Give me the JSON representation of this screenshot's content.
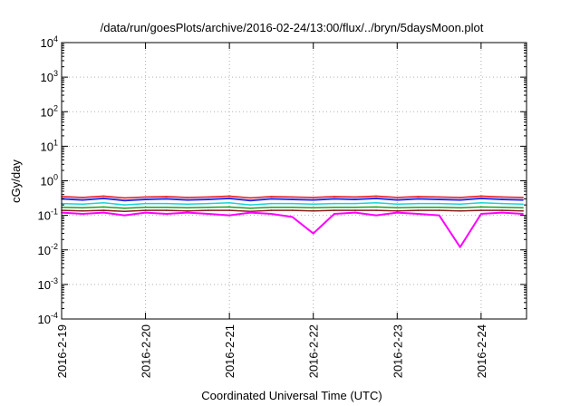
{
  "chart_data": {
    "type": "line",
    "title": "/data/run/goesPlots/archive/2016-02-24/13:00/flux/../bryn/5daysMoon.plot",
    "xlabel": "Coordinated Universal Time (UTC)",
    "ylabel": "cGy/day",
    "yscale": "log",
    "ylim": [
      0.0001,
      10000
    ],
    "xlim": [
      "2016-02-19 00:00",
      "2016-02-24 13:00"
    ],
    "grid": true,
    "legend": "none",
    "x_ticks": [
      "2016-2-19",
      "2016-2-20",
      "2016-2-21",
      "2016-2-22",
      "2016-2-23",
      "2016-2-24"
    ],
    "y_ticks": [
      {
        "base": "10",
        "exp": "-4",
        "value": 0.0001
      },
      {
        "base": "10",
        "exp": "-3",
        "value": 0.001
      },
      {
        "base": "10",
        "exp": "-2",
        "value": 0.01
      },
      {
        "base": "10",
        "exp": "-1",
        "value": 0.1
      },
      {
        "base": "10",
        "exp": "0",
        "value": 1
      },
      {
        "base": "10",
        "exp": "1",
        "value": 10
      },
      {
        "base": "10",
        "exp": "2",
        "value": 100
      },
      {
        "base": "10",
        "exp": "3",
        "value": 1000
      },
      {
        "base": "10",
        "exp": "4",
        "value": 10000
      }
    ],
    "x_dates": [
      "2016-02-19 00:00",
      "2016-02-19 06:00",
      "2016-02-19 12:00",
      "2016-02-19 18:00",
      "2016-02-20 00:00",
      "2016-02-20 06:00",
      "2016-02-20 12:00",
      "2016-02-20 18:00",
      "2016-02-21 00:00",
      "2016-02-21 06:00",
      "2016-02-21 12:00",
      "2016-02-21 18:00",
      "2016-02-22 00:00",
      "2016-02-22 06:00",
      "2016-02-22 12:00",
      "2016-02-22 18:00",
      "2016-02-23 00:00",
      "2016-02-23 06:00",
      "2016-02-23 12:00",
      "2016-02-23 18:00",
      "2016-02-24 00:00",
      "2016-02-24 06:00",
      "2016-02-24 12:00"
    ],
    "series": [
      {
        "color": "#e8161b",
        "values": [
          0.35,
          0.33,
          0.36,
          0.32,
          0.34,
          0.35,
          0.33,
          0.34,
          0.36,
          0.32,
          0.35,
          0.34,
          0.33,
          0.35,
          0.34,
          0.36,
          0.33,
          0.35,
          0.34,
          0.33,
          0.36,
          0.34,
          0.33
        ]
      },
      {
        "color": "#2a2ee6",
        "values": [
          0.3,
          0.28,
          0.31,
          0.27,
          0.29,
          0.3,
          0.28,
          0.29,
          0.31,
          0.27,
          0.3,
          0.29,
          0.28,
          0.3,
          0.29,
          0.31,
          0.28,
          0.3,
          0.29,
          0.28,
          0.31,
          0.29,
          0.28
        ]
      },
      {
        "color": "#18d5d5",
        "values": [
          0.22,
          0.21,
          0.23,
          0.2,
          0.22,
          0.22,
          0.21,
          0.22,
          0.23,
          0.2,
          0.22,
          0.22,
          0.21,
          0.22,
          0.22,
          0.23,
          0.21,
          0.22,
          0.22,
          0.21,
          0.23,
          0.22,
          0.21
        ]
      },
      {
        "color": "#1aa01a",
        "values": [
          0.17,
          0.165,
          0.175,
          0.16,
          0.17,
          0.17,
          0.165,
          0.17,
          0.175,
          0.16,
          0.17,
          0.17,
          0.165,
          0.17,
          0.17,
          0.175,
          0.165,
          0.17,
          0.17,
          0.165,
          0.175,
          0.17,
          0.165
        ]
      },
      {
        "color": "#8b1a1a",
        "values": [
          0.14,
          0.135,
          0.14,
          0.13,
          0.14,
          0.14,
          0.135,
          0.14,
          0.14,
          0.13,
          0.14,
          0.14,
          0.135,
          0.14,
          0.14,
          0.14,
          0.135,
          0.14,
          0.14,
          0.135,
          0.14,
          0.14,
          0.135
        ]
      },
      {
        "color": "#ff00ff",
        "values": [
          0.12,
          0.11,
          0.12,
          0.1,
          0.12,
          0.11,
          0.12,
          0.11,
          0.1,
          0.12,
          0.11,
          0.09,
          0.03,
          0.11,
          0.12,
          0.1,
          0.12,
          0.11,
          0.1,
          0.012,
          0.11,
          0.12,
          0.11
        ]
      }
    ]
  }
}
